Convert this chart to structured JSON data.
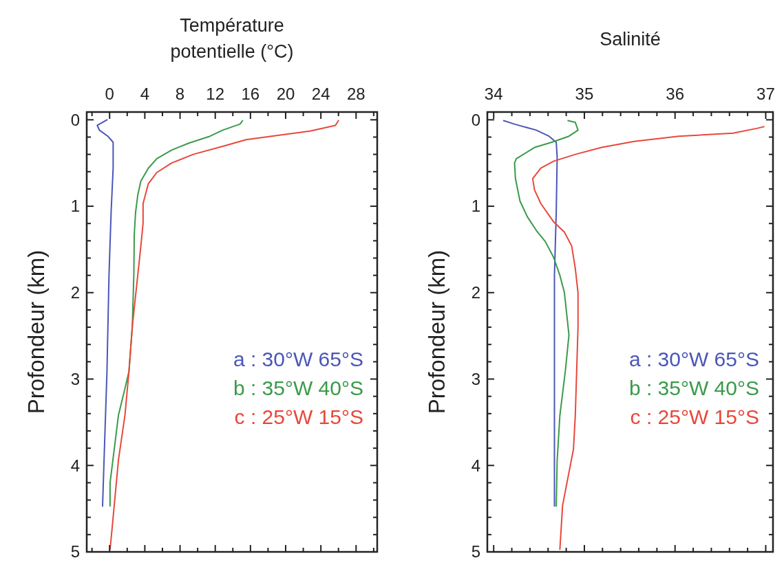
{
  "chart_data": [
    {
      "type": "line",
      "title": "Température potentielle (°C)",
      "ylabel": "Profondeur (km)",
      "xlim": [
        -2.6,
        30.4
      ],
      "ylim": [
        5,
        -0.09
      ],
      "xticks": [
        {
          "value": -2,
          "label": null
        },
        0,
        {
          "value": 2,
          "label": null
        },
        4,
        {
          "value": 6,
          "label": null
        },
        8,
        {
          "value": 10,
          "label": null
        },
        12,
        {
          "value": 14,
          "label": null
        },
        16,
        {
          "value": 18,
          "label": null
        },
        20,
        {
          "value": 22,
          "label": null
        },
        24,
        {
          "value": 26,
          "label": null
        },
        28,
        {
          "value": 30,
          "label": null
        }
      ],
      "yticks": [
        0,
        {
          "value": 0.2,
          "label": null
        },
        {
          "value": 0.4,
          "label": null
        },
        {
          "value": 0.6,
          "label": null
        },
        {
          "value": 0.8,
          "label": null
        },
        1,
        {
          "value": 1.2,
          "label": null
        },
        {
          "value": 1.4,
          "label": null
        },
        {
          "value": 1.6,
          "label": null
        },
        {
          "value": 1.8,
          "label": null
        },
        2,
        {
          "value": 2.2,
          "label": null
        },
        {
          "value": 2.4,
          "label": null
        },
        {
          "value": 2.6,
          "label": null
        },
        {
          "value": 2.8,
          "label": null
        },
        3,
        {
          "value": 3.2,
          "label": null
        },
        {
          "value": 3.4,
          "label": null
        },
        {
          "value": 3.6,
          "label": null
        },
        {
          "value": 3.8,
          "label": null
        },
        4,
        {
          "value": 4.2,
          "label": null
        },
        {
          "value": 4.4,
          "label": null
        },
        {
          "value": 4.6,
          "label": null
        },
        {
          "value": 4.8,
          "label": null
        },
        5
      ],
      "legend": "right",
      "marker": "none",
      "grid": false,
      "series": [
        {
          "name": "a : 30°W 65°S",
          "color": "#4a56b8",
          "x": [
            -0.3,
            -1.4,
            -1.16,
            -0.2,
            0.4,
            0.4,
            0.17,
            -0.07,
            -0.3,
            -0.55,
            -0.8
          ],
          "values": [
            0,
            0.065,
            0.12,
            0.19,
            0.26,
            0.56,
            1.07,
            1.8,
            2.91,
            3.68,
            4.47
          ]
        },
        {
          "name": "b : 35°W 40°S",
          "color": "#3a9a4a",
          "x": [
            15.1,
            14.8,
            12.85,
            11.4,
            9.0,
            7.05,
            5.36,
            4.4,
            3.55,
            3.2,
            2.95,
            2.8,
            2.75,
            2.58,
            2.2,
            1.74,
            1.0,
            0.53,
            0.05,
            0.05
          ],
          "values": [
            0.01,
            0.05,
            0.12,
            0.19,
            0.27,
            0.35,
            0.45,
            0.56,
            0.71,
            0.87,
            1.07,
            1.33,
            1.8,
            2.39,
            2.91,
            3.11,
            3.42,
            3.81,
            4.2,
            4.47
          ]
        },
        {
          "name": "c : 25°W 15°S",
          "color": "#e8473a",
          "x": [
            26.0,
            25.65,
            22.75,
            19.1,
            15.5,
            13.1,
            9.5,
            7.05,
            5.36,
            4.4,
            3.8,
            3.8,
            3.55,
            3.3,
            2.58,
            2.2,
            1.74,
            1.0,
            0.3,
            0.05
          ],
          "values": [
            0.01,
            0.065,
            0.13,
            0.18,
            0.23,
            0.3,
            0.4,
            0.5,
            0.61,
            0.74,
            0.97,
            1.2,
            1.46,
            1.7,
            2.39,
            2.91,
            3.42,
            3.94,
            4.71,
            4.97
          ]
        }
      ]
    },
    {
      "type": "line",
      "title": "Salinité",
      "ylabel": "Profondeur (km)",
      "xlim": [
        33.93,
        37.08
      ],
      "ylim": [
        5,
        -0.09
      ],
      "xticks": [
        34,
        {
          "value": 34.2,
          "label": null
        },
        {
          "value": 34.4,
          "label": null
        },
        {
          "value": 34.6,
          "label": null
        },
        {
          "value": 34.8,
          "label": null
        },
        35,
        {
          "value": 35.2,
          "label": null
        },
        {
          "value": 35.4,
          "label": null
        },
        {
          "value": 35.6,
          "label": null
        },
        {
          "value": 35.8,
          "label": null
        },
        36,
        {
          "value": 36.2,
          "label": null
        },
        {
          "value": 36.4,
          "label": null
        },
        {
          "value": 36.6,
          "label": null
        },
        {
          "value": 36.8,
          "label": null
        },
        37
      ],
      "yticks": [
        0,
        {
          "value": 0.2,
          "label": null
        },
        {
          "value": 0.4,
          "label": null
        },
        {
          "value": 0.6,
          "label": null
        },
        {
          "value": 0.8,
          "label": null
        },
        1,
        {
          "value": 1.2,
          "label": null
        },
        {
          "value": 1.4,
          "label": null
        },
        {
          "value": 1.6,
          "label": null
        },
        {
          "value": 1.8,
          "label": null
        },
        2,
        {
          "value": 2.2,
          "label": null
        },
        {
          "value": 2.4,
          "label": null
        },
        {
          "value": 2.6,
          "label": null
        },
        {
          "value": 2.8,
          "label": null
        },
        3,
        {
          "value": 3.2,
          "label": null
        },
        {
          "value": 3.4,
          "label": null
        },
        {
          "value": 3.6,
          "label": null
        },
        {
          "value": 3.8,
          "label": null
        },
        4,
        {
          "value": 4.2,
          "label": null
        },
        {
          "value": 4.4,
          "label": null
        },
        {
          "value": 4.6,
          "label": null
        },
        {
          "value": 4.8,
          "label": null
        },
        5
      ],
      "legend": "right",
      "marker": "none",
      "grid": false,
      "series": [
        {
          "name": "a : 30°W 65°S",
          "color": "#4a56b8",
          "x": [
            34.11,
            34.23,
            34.47,
            34.61,
            34.69,
            34.7,
            34.69,
            34.67,
            34.67,
            34.67
          ],
          "values": [
            0.01,
            0.05,
            0.12,
            0.19,
            0.26,
            0.43,
            1.07,
            1.8,
            3.0,
            4.47
          ]
        },
        {
          "name": "b : 35°W 40°S",
          "color": "#3a9a4a",
          "x": [
            34.82,
            34.9,
            34.93,
            34.83,
            34.64,
            34.45,
            34.25,
            34.23,
            34.24,
            34.29,
            34.37,
            34.47,
            34.57,
            34.66,
            34.73,
            34.78,
            34.83,
            34.79,
            34.73,
            34.7,
            34.69
          ],
          "values": [
            0.01,
            0.03,
            0.12,
            0.19,
            0.26,
            0.32,
            0.45,
            0.5,
            0.68,
            0.94,
            1.12,
            1.28,
            1.41,
            1.59,
            1.8,
            2.0,
            2.49,
            2.91,
            3.42,
            3.94,
            4.47
          ]
        },
        {
          "name": "c : 25°W 15°S",
          "color": "#e8473a",
          "x": [
            36.98,
            36.9,
            36.64,
            36.04,
            35.55,
            35.19,
            34.9,
            34.66,
            34.52,
            34.43,
            34.45,
            34.52,
            34.66,
            34.78,
            34.86,
            34.9,
            34.93,
            34.93,
            34.9,
            34.88,
            34.76,
            34.73
          ],
          "values": [
            0.08,
            0.1,
            0.155,
            0.19,
            0.25,
            0.32,
            0.4,
            0.48,
            0.56,
            0.68,
            0.81,
            0.97,
            1.18,
            1.3,
            1.46,
            1.72,
            2.0,
            2.4,
            3.42,
            3.81,
            4.46,
            4.97
          ]
        }
      ]
    }
  ]
}
